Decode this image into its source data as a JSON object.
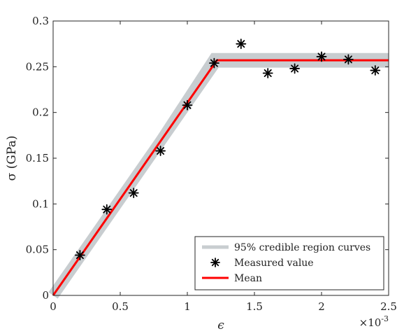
{
  "chart_data": {
    "type": "line",
    "xlabel": "ϵ",
    "ylabel": "σ (GPa)",
    "x_multiplier": "×10",
    "x_multiplier_exp": "-3",
    "xlim": [
      0,
      2.5
    ],
    "ylim": [
      0,
      0.3
    ],
    "xticks": [
      0,
      0.5,
      1,
      1.5,
      2,
      2.5
    ],
    "xtick_labels": [
      "0",
      "0.5",
      "1",
      "1.5",
      "2",
      "2.5"
    ],
    "yticks": [
      0,
      0.05,
      0.1,
      0.15,
      0.2,
      0.25,
      0.3
    ],
    "ytick_labels": [
      "0",
      "0.05",
      "0.1",
      "0.15",
      "0.2",
      "0.25",
      "0.3"
    ],
    "grid": false,
    "legend_position": "bottom-right",
    "series": [
      {
        "name": "95% credible region curves",
        "kind": "band",
        "color": "#c8cdd0",
        "x": [
          0,
          1.18,
          1.25,
          2.5
        ],
        "lower": [
          0,
          0.249,
          0.249,
          0.249
        ],
        "upper": [
          0,
          0.265,
          0.265,
          0.265
        ]
      },
      {
        "name": "Measured value",
        "kind": "scatter",
        "color": "#000000",
        "marker": "asterisk",
        "x": [
          0.2,
          0.4,
          0.6,
          0.8,
          1.0,
          1.2,
          1.4,
          1.6,
          1.8,
          2.0,
          2.2,
          2.4
        ],
        "y": [
          0.044,
          0.094,
          0.112,
          0.158,
          0.208,
          0.254,
          0.275,
          0.243,
          0.248,
          0.261,
          0.258,
          0.246
        ]
      },
      {
        "name": "Mean",
        "kind": "line",
        "color": "#ff0000",
        "x": [
          0,
          1.22,
          2.5
        ],
        "y": [
          0,
          0.257,
          0.257
        ]
      }
    ]
  }
}
